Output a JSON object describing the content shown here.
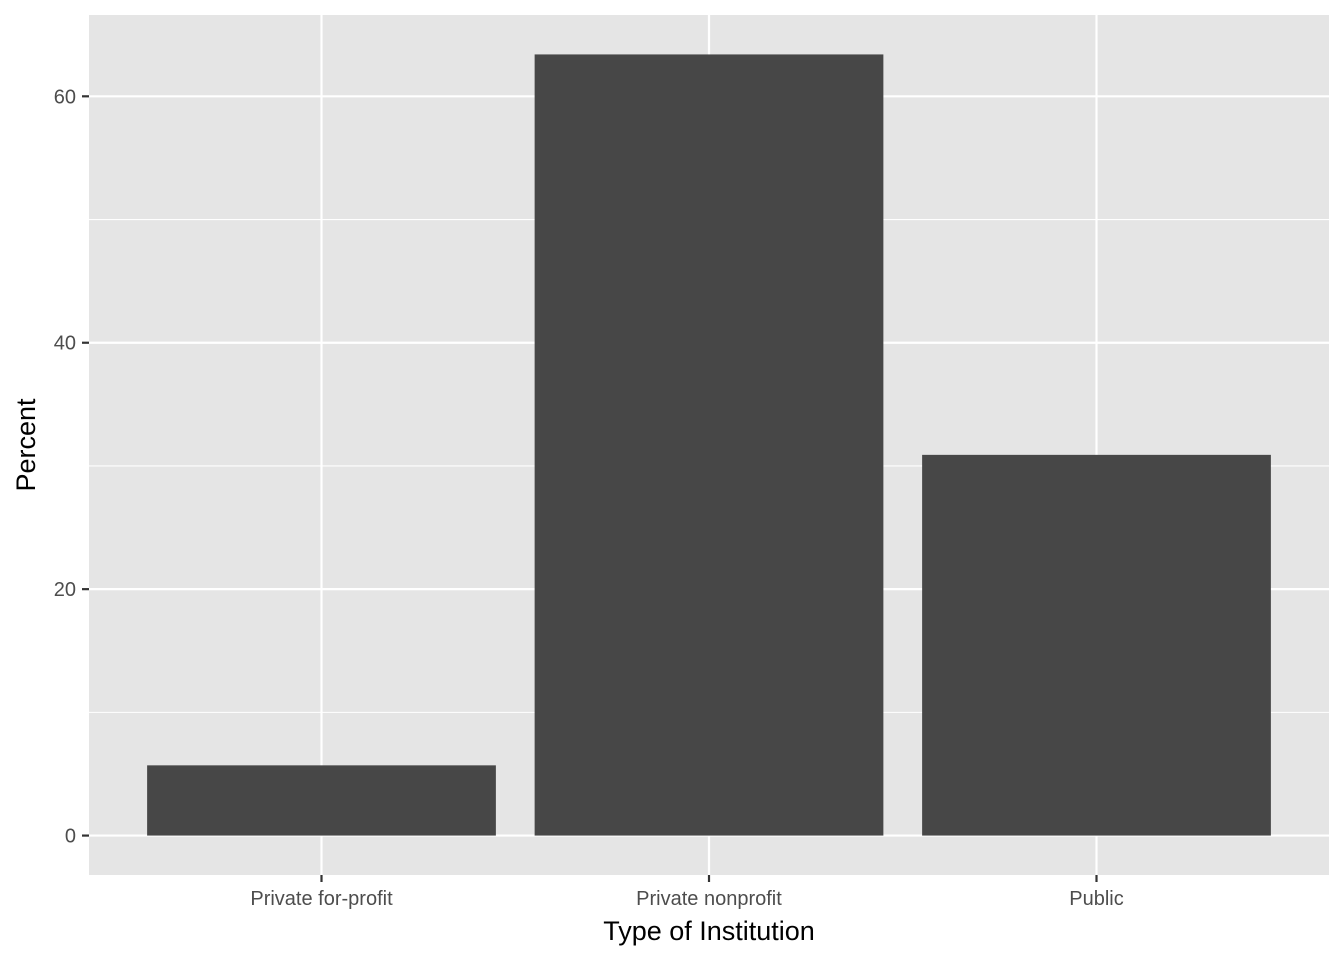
{
  "chart_data": {
    "type": "bar",
    "title": "",
    "xlabel": "Type of Institution",
    "ylabel": "Percent",
    "categories": [
      "Private for-profit",
      "Private nonprofit",
      "Public"
    ],
    "values": [
      5.7,
      63.4,
      30.9
    ],
    "ylim": [
      -3.2,
      66.6
    ],
    "yticks": [
      0,
      20,
      40,
      60
    ],
    "ytick_labels": [
      "0",
      "20",
      "40",
      "60"
    ],
    "grid": true,
    "legend": "none"
  },
  "colors": {
    "panel_background": "#e5e5e5",
    "grid": "#ffffff",
    "bar_fill": "#474747",
    "tick_label": "#4d4d4d",
    "tick_mark": "#333333",
    "axis_title": "#000000"
  }
}
